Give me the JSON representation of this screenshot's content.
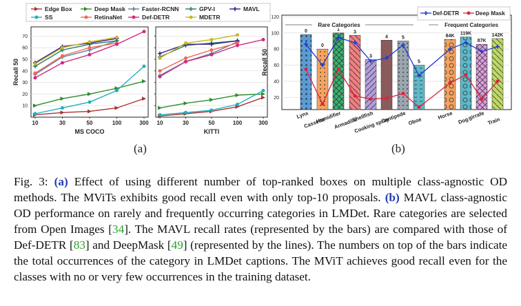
{
  "caption": {
    "fig_label": "Fig. 3:",
    "part_a_label": "(a)",
    "part_a_text": "Effect of using different number of top-ranked boxes on multiple class-agnostic OD methods. The MViTs exhibits good recall even with only top-10 proposals.",
    "part_b_label": "(b)",
    "part_b_text1": "MAVL class-agnostic OD performance on rarely and frequently occurring categories in LMDet. Rare categories are selected from Open Images [",
    "ref1": "34",
    "part_b_text2": "]. The MAVL recall rates (represented by the bars) are compared with those of Def-DETR [",
    "ref2": "83",
    "part_b_text3": "] and DeepMask [",
    "ref3": "49",
    "part_b_text4": "] (represented by the lines). The numbers on top of the bars indicate the total occurrences of the category in LMDet captions. The MViT achieves good recall even for the classes with no or very few occurrences in the training dataset."
  },
  "subfig_labels": [
    "(a)",
    "(b)"
  ],
  "colors": {
    "edge_box": "#a83232",
    "deep_mask": "#2e8b2e",
    "faster_rcnn": "#5b7fa6",
    "gpv_i": "#2a7a6a",
    "mavl": "#3b1f8c",
    "ss": "#20b0c0",
    "retinanet": "#f06a50",
    "def_detr": "#d02a7a",
    "mdetr": "#c8b820"
  },
  "chart_data": [
    {
      "type": "line",
      "title": "",
      "xlabel": "MS COCO",
      "ylabel": "Recall 50",
      "x": [
        "10",
        "30",
        "50",
        "100",
        "300"
      ],
      "ylim": [
        0,
        78
      ],
      "yticks": [
        10,
        20,
        30,
        40,
        50,
        60,
        70
      ],
      "legend": [
        "Edge Box",
        "Deep Mask",
        "Faster-RCNN",
        "GPV-I",
        "MAVL",
        "SS",
        "RetinaNet",
        "Def-DETR",
        "MDETR"
      ],
      "series": [
        {
          "name": "Edge Box",
          "values": [
            2,
            4,
            5,
            8,
            16
          ]
        },
        {
          "name": "Deep Mask",
          "values": [
            10,
            16,
            20,
            25,
            31
          ]
        },
        {
          "name": "Faster-RCNN",
          "values": [
            37,
            52,
            58,
            66,
            null
          ]
        },
        {
          "name": "GPV-I",
          "values": [
            44,
            58,
            63,
            66,
            null
          ]
        },
        {
          "name": "MAVL",
          "values": [
            47,
            61,
            64,
            68,
            null
          ]
        },
        {
          "name": "SS",
          "values": [
            3,
            8,
            13,
            23,
            44
          ]
        },
        {
          "name": "RetinaNet",
          "values": [
            38,
            53,
            60,
            64,
            null
          ]
        },
        {
          "name": "Def-DETR",
          "values": [
            34,
            47,
            54,
            63,
            74
          ]
        },
        {
          "name": "MDETR",
          "values": [
            46,
            60,
            65,
            69,
            null
          ]
        }
      ]
    },
    {
      "type": "line",
      "title": "",
      "xlabel": "KITTI",
      "ylabel": "",
      "x": [
        "10",
        "30",
        "50",
        "100",
        "300"
      ],
      "ylim": [
        0,
        78
      ],
      "yticks": [
        10,
        20,
        30,
        40,
        50,
        60,
        70
      ],
      "series": [
        {
          "name": "Edge Box",
          "values": [
            1,
            3,
            5,
            9,
            17
          ]
        },
        {
          "name": "Deep Mask",
          "values": [
            8,
            12,
            15,
            19,
            20
          ]
        },
        {
          "name": "Faster-RCNN",
          "values": [
            36,
            48,
            55,
            65,
            null
          ]
        },
        {
          "name": "GPV-I",
          "values": [
            52,
            62,
            64,
            66,
            null
          ]
        },
        {
          "name": "MAVL",
          "values": [
            55,
            63,
            63,
            66,
            null
          ]
        },
        {
          "name": "SS",
          "values": [
            2,
            4,
            6,
            11,
            23
          ]
        },
        {
          "name": "RetinaNet",
          "values": [
            40,
            51,
            58,
            64,
            null
          ]
        },
        {
          "name": "Def-DETR",
          "values": [
            35,
            48,
            54,
            62,
            67
          ]
        },
        {
          "name": "MDETR",
          "values": [
            51,
            64,
            67,
            71,
            null
          ]
        }
      ]
    },
    {
      "type": "bar",
      "title": "",
      "xlabel": "",
      "ylabel": "Recall 50",
      "ylim": [
        5,
        122
      ],
      "yticks": [
        20,
        40,
        60,
        80,
        100,
        120
      ],
      "group_labels": [
        "Rare Categories",
        "Frequent Categories"
      ],
      "legend": [
        "Def-DETR",
        "Deep Mask"
      ],
      "categories": [
        "Lynx",
        "Cassette",
        "Humidifier",
        "Armadillo",
        "Shellfish",
        "Cooking spray",
        "Centipede",
        "Oboe",
        "Horse",
        "Dog",
        "girrafe",
        "Train"
      ],
      "counts": [
        "0",
        "0",
        "1",
        "3",
        "3",
        "4",
        "5",
        "5",
        "84K",
        "119K",
        "87K",
        "142K"
      ],
      "bar_colors": [
        "#5b9bd5",
        "#f4a460",
        "#3cb371",
        "#f08080",
        "#b39ddb",
        "#8b5a5a",
        "#9aa5ae",
        "#5fb8c8",
        "#f4a460",
        "#5fb8c8",
        "#dda0dd",
        "#bdd867"
      ],
      "values": [
        98,
        80,
        100,
        97,
        67,
        91,
        90,
        60,
        92,
        95,
        86,
        93
      ],
      "series": [
        {
          "name": "Def-DETR",
          "values": [
            86,
            60,
            94,
            88,
            65,
            69,
            85,
            47,
            80,
            88,
            77,
            83
          ]
        },
        {
          "name": "Deep Mask",
          "values": [
            55,
            12,
            55,
            22,
            18,
            19,
            25,
            8,
            38,
            48,
            18,
            40
          ]
        }
      ]
    }
  ]
}
